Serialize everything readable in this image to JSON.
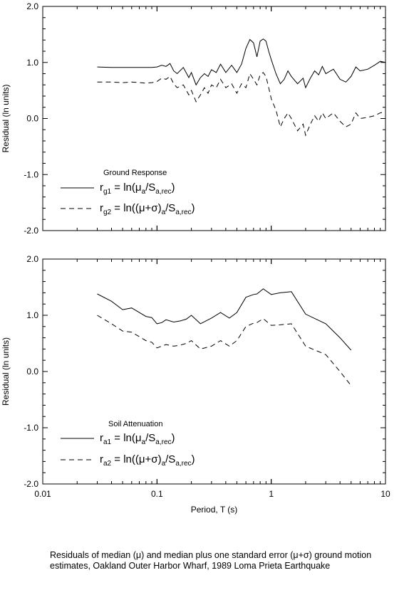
{
  "caption": "Residuals of median (μ) and median plus one standard error (μ+σ) ground motion estimates, Oakland Outer Harbor Wharf, 1989 Loma Prieta Earthquake",
  "chart_data": [
    {
      "type": "line",
      "title": "Ground Response",
      "xlabel": "",
      "ylabel": "Residual (ln units)",
      "xscale": "log",
      "xlim": [
        0.01,
        10
      ],
      "ylim": [
        -2.0,
        2.0
      ],
      "xticks": [],
      "yticks": [
        "-2.0",
        "-1.0",
        "0.0",
        "1.0",
        "2.0"
      ],
      "grid": false,
      "legend": "lower-left",
      "series": [
        {
          "legend_parts": [
            "r",
            "g1",
            " = ln(",
            "μ",
            "a",
            "/S",
            "a,rec",
            ")"
          ],
          "style": "solid",
          "x": [
            0.03,
            0.04,
            0.05,
            0.06,
            0.07,
            0.08,
            0.09,
            0.1,
            0.11,
            0.12,
            0.13,
            0.14,
            0.15,
            0.17,
            0.19,
            0.2,
            0.22,
            0.24,
            0.26,
            0.28,
            0.3,
            0.33,
            0.36,
            0.4,
            0.45,
            0.5,
            0.55,
            0.6,
            0.65,
            0.7,
            0.75,
            0.8,
            0.85,
            0.9,
            0.95,
            1.0,
            1.1,
            1.2,
            1.3,
            1.4,
            1.5,
            1.7,
            1.9,
            2.0,
            2.2,
            2.4,
            2.6,
            2.8,
            3.0,
            3.5,
            4.0,
            4.5,
            5.0,
            5.5,
            6.0,
            7.0,
            8.0,
            9.0,
            10.0
          ],
          "values": [
            0.92,
            0.91,
            0.91,
            0.91,
            0.91,
            0.91,
            0.91,
            0.92,
            0.95,
            0.93,
            0.98,
            0.85,
            0.8,
            0.91,
            0.73,
            0.82,
            0.6,
            0.73,
            0.8,
            0.75,
            0.87,
            0.82,
            0.97,
            0.82,
            0.95,
            0.82,
            0.97,
            1.25,
            1.41,
            1.35,
            1.1,
            1.38,
            1.42,
            1.38,
            1.2,
            1.05,
            0.8,
            0.62,
            0.7,
            0.85,
            0.75,
            0.62,
            0.72,
            0.55,
            0.72,
            0.85,
            0.78,
            0.93,
            0.8,
            0.88,
            0.7,
            0.65,
            0.75,
            0.92,
            0.85,
            0.88,
            0.95,
            1.02,
            1.0
          ]
        },
        {
          "legend_parts": [
            "r",
            "g2",
            " = ln((",
            "μ+σ",
            ")",
            "a",
            "/S",
            "a,rec",
            ")"
          ],
          "style": "dashed",
          "x": [
            0.03,
            0.04,
            0.05,
            0.06,
            0.07,
            0.08,
            0.09,
            0.1,
            0.11,
            0.12,
            0.13,
            0.14,
            0.15,
            0.17,
            0.19,
            0.2,
            0.22,
            0.24,
            0.26,
            0.28,
            0.3,
            0.33,
            0.36,
            0.4,
            0.45,
            0.5,
            0.55,
            0.6,
            0.65,
            0.7,
            0.75,
            0.8,
            0.85,
            0.9,
            0.95,
            1.0,
            1.1,
            1.2,
            1.3,
            1.4,
            1.5,
            1.7,
            1.9,
            2.0,
            2.2,
            2.4,
            2.6,
            2.8,
            3.0,
            3.5,
            4.0,
            4.5,
            5.0,
            5.5,
            6.0,
            7.0,
            8.0,
            9.0,
            10.0
          ],
          "values": [
            0.65,
            0.65,
            0.64,
            0.65,
            0.64,
            0.63,
            0.64,
            0.66,
            0.72,
            0.7,
            0.75,
            0.62,
            0.55,
            0.6,
            0.42,
            0.5,
            0.3,
            0.42,
            0.55,
            0.45,
            0.6,
            0.55,
            0.7,
            0.55,
            0.62,
            0.45,
            0.62,
            0.55,
            0.8,
            0.7,
            0.6,
            0.78,
            0.82,
            0.75,
            0.55,
            0.35,
            0.15,
            -0.15,
            0.0,
            0.1,
            0.0,
            -0.22,
            -0.1,
            -0.3,
            -0.1,
            0.05,
            -0.05,
            0.1,
            0.0,
            0.1,
            -0.05,
            -0.15,
            -0.1,
            0.1,
            0.0,
            0.02,
            0.05,
            0.1,
            0.12
          ]
        }
      ]
    },
    {
      "type": "line",
      "title": "Soil Attenuation",
      "xlabel": "Period, T (s)",
      "ylabel": "Residual (ln units)",
      "xscale": "log",
      "xlim": [
        0.01,
        10
      ],
      "ylim": [
        -2.0,
        2.0
      ],
      "xticks": [
        "0.01",
        "0.1",
        "1",
        "10"
      ],
      "yticks": [
        "-2.0",
        "-1.0",
        "0.0",
        "1.0",
        "2.0"
      ],
      "grid": false,
      "legend": "lower-left",
      "series": [
        {
          "legend_parts": [
            "r",
            "a1",
            " = ln(",
            "μ",
            "a",
            "/S",
            "a,rec",
            ")"
          ],
          "style": "solid",
          "x": [
            0.03,
            0.04,
            0.05,
            0.06,
            0.07,
            0.08,
            0.09,
            0.1,
            0.11,
            0.12,
            0.14,
            0.16,
            0.18,
            0.2,
            0.24,
            0.3,
            0.36,
            0.43,
            0.5,
            0.6,
            0.7,
            0.75,
            0.85,
            1.0,
            1.2,
            1.5,
            2.0,
            3.0,
            4.0,
            5.0
          ],
          "values": [
            1.38,
            1.25,
            1.1,
            1.13,
            1.05,
            0.98,
            0.96,
            0.85,
            0.87,
            0.92,
            0.88,
            0.9,
            0.93,
            1.0,
            0.85,
            0.95,
            1.05,
            0.95,
            1.05,
            1.32,
            1.37,
            1.38,
            1.47,
            1.37,
            1.4,
            1.42,
            1.02,
            0.85,
            0.6,
            0.38
          ]
        },
        {
          "legend_parts": [
            "r",
            "a2",
            " = ln((",
            "μ+σ",
            ")",
            "a",
            "/S",
            "a,rec",
            ")"
          ],
          "style": "dashed",
          "x": [
            0.03,
            0.04,
            0.05,
            0.06,
            0.07,
            0.08,
            0.09,
            0.1,
            0.11,
            0.12,
            0.14,
            0.16,
            0.18,
            0.2,
            0.24,
            0.3,
            0.36,
            0.43,
            0.5,
            0.6,
            0.7,
            0.75,
            0.85,
            1.0,
            1.2,
            1.5,
            2.0,
            3.0,
            4.0,
            5.0
          ],
          "values": [
            1.0,
            0.85,
            0.72,
            0.7,
            0.62,
            0.55,
            0.52,
            0.42,
            0.45,
            0.48,
            0.45,
            0.47,
            0.5,
            0.55,
            0.4,
            0.45,
            0.55,
            0.45,
            0.55,
            0.8,
            0.86,
            0.87,
            0.94,
            0.82,
            0.83,
            0.85,
            0.45,
            0.3,
            0.0,
            -0.25
          ]
        }
      ]
    }
  ]
}
